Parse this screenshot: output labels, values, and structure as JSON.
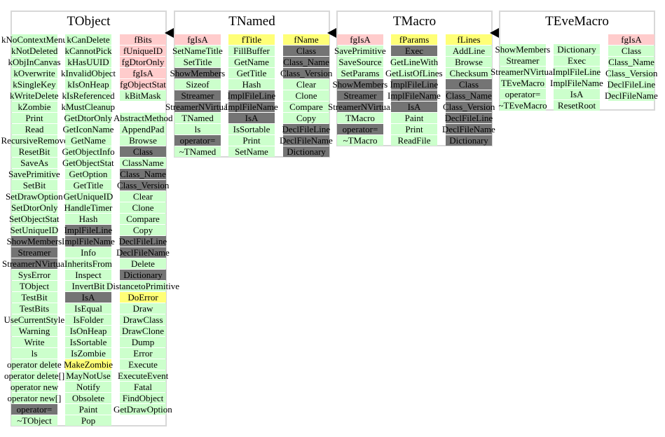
{
  "classes": [
    {
      "title": "TObject",
      "columns": [
        [
          {
            "label": "kNoContextMenu",
            "color": "green"
          },
          {
            "label": "kNotDeleted",
            "color": "green"
          },
          {
            "label": "kObjInCanvas",
            "color": "green"
          },
          {
            "label": "kOverwrite",
            "color": "green"
          },
          {
            "label": "kSingleKey",
            "color": "green"
          },
          {
            "label": "kWriteDelete",
            "color": "green"
          },
          {
            "label": "kZombie",
            "color": "green"
          },
          {
            "label": "Print",
            "color": "green"
          },
          {
            "label": "Read",
            "color": "green"
          },
          {
            "label": "RecursiveRemove",
            "color": "green"
          },
          {
            "label": "ResetBit",
            "color": "green"
          },
          {
            "label": "SaveAs",
            "color": "green"
          },
          {
            "label": "SavePrimitive",
            "color": "green"
          },
          {
            "label": "SetBit",
            "color": "green"
          },
          {
            "label": "SetDrawOption",
            "color": "green"
          },
          {
            "label": "SetDtorOnly",
            "color": "green"
          },
          {
            "label": "SetObjectStat",
            "color": "green"
          },
          {
            "label": "SetUniqueID",
            "color": "green"
          },
          {
            "label": "ShowMembers",
            "color": "gray"
          },
          {
            "label": "Streamer",
            "color": "gray"
          },
          {
            "label": "StreamerNVirtual",
            "color": "gray"
          },
          {
            "label": "SysError",
            "color": "green"
          },
          {
            "label": "TObject",
            "color": "green"
          },
          {
            "label": "TestBit",
            "color": "green"
          },
          {
            "label": "TestBits",
            "color": "green"
          },
          {
            "label": "UseCurrentStyle",
            "color": "green"
          },
          {
            "label": "Warning",
            "color": "green"
          },
          {
            "label": "Write",
            "color": "green"
          },
          {
            "label": "ls",
            "color": "green"
          },
          {
            "label": "operator delete",
            "color": "green"
          },
          {
            "label": "operator delete[]",
            "color": "green"
          },
          {
            "label": "operator new",
            "color": "green"
          },
          {
            "label": "operator new[]",
            "color": "green"
          },
          {
            "label": "operator=",
            "color": "gray"
          },
          {
            "label": "~TObject",
            "color": "green"
          }
        ],
        [
          {
            "label": "kCanDelete",
            "color": "green"
          },
          {
            "label": "kCannotPick",
            "color": "green"
          },
          {
            "label": "kHasUUID",
            "color": "green"
          },
          {
            "label": "kInvalidObject",
            "color": "green"
          },
          {
            "label": "kIsOnHeap",
            "color": "green"
          },
          {
            "label": "kIsReferenced",
            "color": "green"
          },
          {
            "label": "kMustCleanup",
            "color": "green"
          },
          {
            "label": "GetDtorOnly",
            "color": "green"
          },
          {
            "label": "GetIconName",
            "color": "green"
          },
          {
            "label": "GetName",
            "color": "green"
          },
          {
            "label": "GetObjectInfo",
            "color": "green"
          },
          {
            "label": "GetObjectStat",
            "color": "green"
          },
          {
            "label": "GetOption",
            "color": "green"
          },
          {
            "label": "GetTitle",
            "color": "green"
          },
          {
            "label": "GetUniqueID",
            "color": "green"
          },
          {
            "label": "HandleTimer",
            "color": "green"
          },
          {
            "label": "Hash",
            "color": "green"
          },
          {
            "label": "ImplFileLine",
            "color": "gray"
          },
          {
            "label": "ImplFileName",
            "color": "gray"
          },
          {
            "label": "Info",
            "color": "green"
          },
          {
            "label": "InheritsFrom",
            "color": "green"
          },
          {
            "label": "Inspect",
            "color": "green"
          },
          {
            "label": "InvertBit",
            "color": "green"
          },
          {
            "label": "IsA",
            "color": "gray"
          },
          {
            "label": "IsEqual",
            "color": "green"
          },
          {
            "label": "IsFolder",
            "color": "green"
          },
          {
            "label": "IsOnHeap",
            "color": "green"
          },
          {
            "label": "IsSortable",
            "color": "green"
          },
          {
            "label": "IsZombie",
            "color": "green"
          },
          {
            "label": "MakeZombie",
            "color": "yellow"
          },
          {
            "label": "MayNotUse",
            "color": "green"
          },
          {
            "label": "Notify",
            "color": "green"
          },
          {
            "label": "Obsolete",
            "color": "green"
          },
          {
            "label": "Paint",
            "color": "green"
          },
          {
            "label": "Pop",
            "color": "green"
          }
        ],
        [
          {
            "label": "fBits",
            "color": "pink"
          },
          {
            "label": "fUniqueID",
            "color": "pink"
          },
          {
            "label": "fgDtorOnly",
            "color": "pink"
          },
          {
            "label": "fgIsA",
            "color": "pink"
          },
          {
            "label": "fgObjectStat",
            "color": "pink"
          },
          {
            "label": "kBitMask",
            "color": "green"
          },
          {
            "label": "",
            "color": "none"
          },
          {
            "label": "AbstractMethod",
            "color": "green"
          },
          {
            "label": "AppendPad",
            "color": "green"
          },
          {
            "label": "Browse",
            "color": "green"
          },
          {
            "label": "Class",
            "color": "gray"
          },
          {
            "label": "ClassName",
            "color": "green"
          },
          {
            "label": "Class_Name",
            "color": "gray"
          },
          {
            "label": "Class_Version",
            "color": "gray"
          },
          {
            "label": "Clear",
            "color": "green"
          },
          {
            "label": "Clone",
            "color": "green"
          },
          {
            "label": "Compare",
            "color": "green"
          },
          {
            "label": "Copy",
            "color": "green"
          },
          {
            "label": "DeclFileLine",
            "color": "gray"
          },
          {
            "label": "DeclFileName",
            "color": "gray"
          },
          {
            "label": "Delete",
            "color": "green"
          },
          {
            "label": "Dictionary",
            "color": "gray"
          },
          {
            "label": "DistancetoPrimitive",
            "color": "green"
          },
          {
            "label": "DoError",
            "color": "yellow"
          },
          {
            "label": "Draw",
            "color": "green"
          },
          {
            "label": "DrawClass",
            "color": "green"
          },
          {
            "label": "DrawClone",
            "color": "green"
          },
          {
            "label": "Dump",
            "color": "green"
          },
          {
            "label": "Error",
            "color": "green"
          },
          {
            "label": "Execute",
            "color": "green"
          },
          {
            "label": "ExecuteEvent",
            "color": "green"
          },
          {
            "label": "Fatal",
            "color": "green"
          },
          {
            "label": "FindObject",
            "color": "green"
          },
          {
            "label": "GetDrawOption",
            "color": "green"
          }
        ]
      ]
    },
    {
      "title": "TNamed",
      "columns": [
        [
          {
            "label": "fgIsA",
            "color": "pink"
          },
          {
            "label": "SetNameTitle",
            "color": "green"
          },
          {
            "label": "SetTitle",
            "color": "green"
          },
          {
            "label": "ShowMembers",
            "color": "gray"
          },
          {
            "label": "Sizeof",
            "color": "green"
          },
          {
            "label": "Streamer",
            "color": "gray"
          },
          {
            "label": "StreamerNVirtual",
            "color": "gray"
          },
          {
            "label": "TNamed",
            "color": "green"
          },
          {
            "label": "ls",
            "color": "green"
          },
          {
            "label": "operator=",
            "color": "gray"
          },
          {
            "label": "~TNamed",
            "color": "green"
          }
        ],
        [
          {
            "label": "fTitle",
            "color": "yellow"
          },
          {
            "label": "FillBuffer",
            "color": "green"
          },
          {
            "label": "GetName",
            "color": "green"
          },
          {
            "label": "GetTitle",
            "color": "green"
          },
          {
            "label": "Hash",
            "color": "green"
          },
          {
            "label": "ImplFileLine",
            "color": "gray"
          },
          {
            "label": "ImplFileName",
            "color": "gray"
          },
          {
            "label": "IsA",
            "color": "gray"
          },
          {
            "label": "IsSortable",
            "color": "green"
          },
          {
            "label": "Print",
            "color": "green"
          },
          {
            "label": "SetName",
            "color": "green"
          }
        ],
        [
          {
            "label": "fName",
            "color": "yellow"
          },
          {
            "label": "Class",
            "color": "gray"
          },
          {
            "label": "Class_Name",
            "color": "gray"
          },
          {
            "label": "Class_Version",
            "color": "gray"
          },
          {
            "label": "Clear",
            "color": "green"
          },
          {
            "label": "Clone",
            "color": "green"
          },
          {
            "label": "Compare",
            "color": "green"
          },
          {
            "label": "Copy",
            "color": "green"
          },
          {
            "label": "DeclFileLine",
            "color": "gray"
          },
          {
            "label": "DeclFileName",
            "color": "gray"
          },
          {
            "label": "Dictionary",
            "color": "gray"
          }
        ]
      ]
    },
    {
      "title": "TMacro",
      "columns": [
        [
          {
            "label": "fgIsA",
            "color": "pink"
          },
          {
            "label": "SavePrimitive",
            "color": "green"
          },
          {
            "label": "SaveSource",
            "color": "green"
          },
          {
            "label": "SetParams",
            "color": "green"
          },
          {
            "label": "ShowMembers",
            "color": "gray"
          },
          {
            "label": "Streamer",
            "color": "gray"
          },
          {
            "label": "StreamerNVirtual",
            "color": "gray"
          },
          {
            "label": "TMacro",
            "color": "green"
          },
          {
            "label": "operator=",
            "color": "gray"
          },
          {
            "label": "~TMacro",
            "color": "green"
          }
        ],
        [
          {
            "label": "fParams",
            "color": "yellow"
          },
          {
            "label": "Exec",
            "color": "gray"
          },
          {
            "label": "GetLineWith",
            "color": "green"
          },
          {
            "label": "GetListOfLines",
            "color": "green"
          },
          {
            "label": "ImplFileLine",
            "color": "gray"
          },
          {
            "label": "ImplFileName",
            "color": "gray"
          },
          {
            "label": "IsA",
            "color": "gray"
          },
          {
            "label": "Paint",
            "color": "green"
          },
          {
            "label": "Print",
            "color": "green"
          },
          {
            "label": "ReadFile",
            "color": "green"
          }
        ],
        [
          {
            "label": "fLines",
            "color": "yellow"
          },
          {
            "label": "AddLine",
            "color": "green"
          },
          {
            "label": "Browse",
            "color": "green"
          },
          {
            "label": "Checksum",
            "color": "green"
          },
          {
            "label": "Class",
            "color": "gray"
          },
          {
            "label": "Class_Name",
            "color": "gray"
          },
          {
            "label": "Class_Version",
            "color": "gray"
          },
          {
            "label": "DeclFileLine",
            "color": "gray"
          },
          {
            "label": "DeclFileName",
            "color": "gray"
          },
          {
            "label": "Dictionary",
            "color": "gray"
          }
        ]
      ]
    },
    {
      "title": "TEveMacro",
      "columns": [
        [
          {
            "label": "ShowMembers",
            "color": "green"
          },
          {
            "label": "Streamer",
            "color": "green"
          },
          {
            "label": "StreamerNVirtual",
            "color": "green"
          },
          {
            "label": "TEveMacro",
            "color": "green"
          },
          {
            "label": "operator=",
            "color": "green"
          },
          {
            "label": "~TEveMacro",
            "color": "green"
          }
        ],
        [
          {
            "label": "Dictionary",
            "color": "green"
          },
          {
            "label": "Exec",
            "color": "green"
          },
          {
            "label": "ImplFileLine",
            "color": "green"
          },
          {
            "label": "ImplFileName",
            "color": "green"
          },
          {
            "label": "IsA",
            "color": "green"
          },
          {
            "label": "ResetRoot",
            "color": "green"
          }
        ],
        [
          {
            "label": "fgIsA",
            "color": "pink"
          },
          {
            "label": "Class",
            "color": "green"
          },
          {
            "label": "Class_Name",
            "color": "green"
          },
          {
            "label": "Class_Version",
            "color": "green"
          },
          {
            "label": "DeclFileLine",
            "color": "green"
          },
          {
            "label": "DeclFileName",
            "color": "green"
          }
        ]
      ]
    }
  ],
  "colors": {
    "green": "#ccffcc",
    "pink": "#ffcccc",
    "yellow": "#ffff77",
    "gray": "#747474",
    "border": "#d8d8d8"
  },
  "arrow_icon": "inheritance-arrow-icon"
}
